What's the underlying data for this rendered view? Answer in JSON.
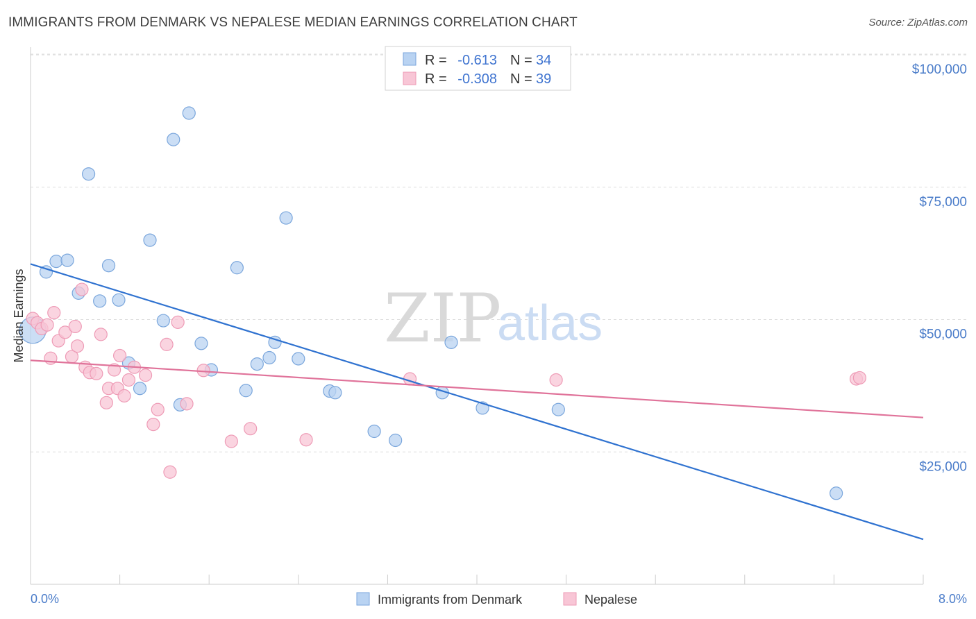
{
  "title": "IMMIGRANTS FROM DENMARK VS NEPALESE MEDIAN EARNINGS CORRELATION CHART",
  "source": "Source: ZipAtlas.com",
  "watermark": {
    "zip": "ZIP",
    "atlas": "atlas"
  },
  "legend": {
    "series": [
      {
        "r_label": "R =",
        "r_value": "-0.613",
        "n_label": "N =",
        "n_value": "34"
      },
      {
        "r_label": "R =",
        "r_value": "-0.308",
        "n_label": "N =",
        "n_value": "39"
      }
    ]
  },
  "bottom_legend": [
    "Immigrants from Denmark",
    "Nepalese"
  ],
  "colors": {
    "blue_fill": "#b9d3f2",
    "blue_stroke": "#7aa6dc",
    "blue_line": "#2f72d0",
    "pink_fill": "#f8c6d6",
    "pink_stroke": "#ee9bb6",
    "pink_line": "#e0739a",
    "tick_text": "#4a7cc9",
    "grid": "#dddddd"
  },
  "chart_data": {
    "type": "scatter",
    "title": "IMMIGRANTS FROM DENMARK VS NEPALESE MEDIAN EARNINGS CORRELATION CHART",
    "xlabel": "",
    "ylabel": "Median Earnings",
    "xlim": [
      0,
      8
    ],
    "ylim": [
      0,
      102500
    ],
    "x_tick_labels": [
      "0.0%",
      "8.0%"
    ],
    "y_ticks": [
      25000,
      50000,
      75000,
      100000
    ],
    "y_tick_labels": [
      "$25,000",
      "$50,000",
      "$75,000",
      "$100,000"
    ],
    "grid": true,
    "legend_position": "top-center",
    "series": [
      {
        "name": "Immigrants from Denmark",
        "color": "#b9d3f2",
        "trend": {
          "x": [
            0,
            8
          ],
          "y": [
            60500,
            8500
          ]
        },
        "points": [
          [
            0.02,
            48000
          ],
          [
            0.14,
            59000
          ],
          [
            0.23,
            61000
          ],
          [
            0.33,
            61200
          ],
          [
            0.43,
            55000
          ],
          [
            0.52,
            77500
          ],
          [
            0.62,
            53500
          ],
          [
            0.7,
            60200
          ],
          [
            0.79,
            53700
          ],
          [
            0.88,
            41800
          ],
          [
            0.98,
            37000
          ],
          [
            1.07,
            65000
          ],
          [
            1.19,
            49800
          ],
          [
            1.28,
            84000
          ],
          [
            1.34,
            33900
          ],
          [
            1.42,
            89000
          ],
          [
            1.53,
            45500
          ],
          [
            1.62,
            40500
          ],
          [
            1.85,
            59800
          ],
          [
            1.93,
            36600
          ],
          [
            2.03,
            41600
          ],
          [
            2.14,
            42800
          ],
          [
            2.19,
            45700
          ],
          [
            2.29,
            69200
          ],
          [
            2.4,
            42600
          ],
          [
            2.68,
            36500
          ],
          [
            2.73,
            36200
          ],
          [
            3.08,
            28900
          ],
          [
            3.27,
            27200
          ],
          [
            3.69,
            36200
          ],
          [
            3.77,
            45700
          ],
          [
            4.05,
            33300
          ],
          [
            4.73,
            33000
          ],
          [
            7.22,
            17200
          ]
        ]
      },
      {
        "name": "Nepalese",
        "color": "#f8c6d6",
        "trend": {
          "x": [
            0,
            8
          ],
          "y": [
            42300,
            31500
          ]
        },
        "points": [
          [
            0.02,
            50200
          ],
          [
            0.06,
            49400
          ],
          [
            0.1,
            48300
          ],
          [
            0.15,
            49000
          ],
          [
            0.18,
            42700
          ],
          [
            0.21,
            51300
          ],
          [
            0.25,
            46000
          ],
          [
            0.31,
            47600
          ],
          [
            0.37,
            43000
          ],
          [
            0.4,
            48700
          ],
          [
            0.42,
            45000
          ],
          [
            0.46,
            55700
          ],
          [
            0.49,
            41000
          ],
          [
            0.53,
            40000
          ],
          [
            0.59,
            39800
          ],
          [
            0.63,
            47200
          ],
          [
            0.68,
            34300
          ],
          [
            0.7,
            37000
          ],
          [
            0.75,
            40500
          ],
          [
            0.78,
            37000
          ],
          [
            0.8,
            43200
          ],
          [
            0.84,
            35600
          ],
          [
            0.88,
            38600
          ],
          [
            0.93,
            41000
          ],
          [
            1.03,
            39500
          ],
          [
            1.1,
            30200
          ],
          [
            1.14,
            33000
          ],
          [
            1.22,
            45300
          ],
          [
            1.25,
            21200
          ],
          [
            1.32,
            49500
          ],
          [
            1.4,
            34100
          ],
          [
            1.55,
            40400
          ],
          [
            1.8,
            27000
          ],
          [
            1.97,
            29400
          ],
          [
            2.47,
            27300
          ],
          [
            3.4,
            38800
          ],
          [
            4.71,
            38600
          ],
          [
            7.4,
            38800
          ],
          [
            7.43,
            39000
          ]
        ]
      }
    ]
  }
}
